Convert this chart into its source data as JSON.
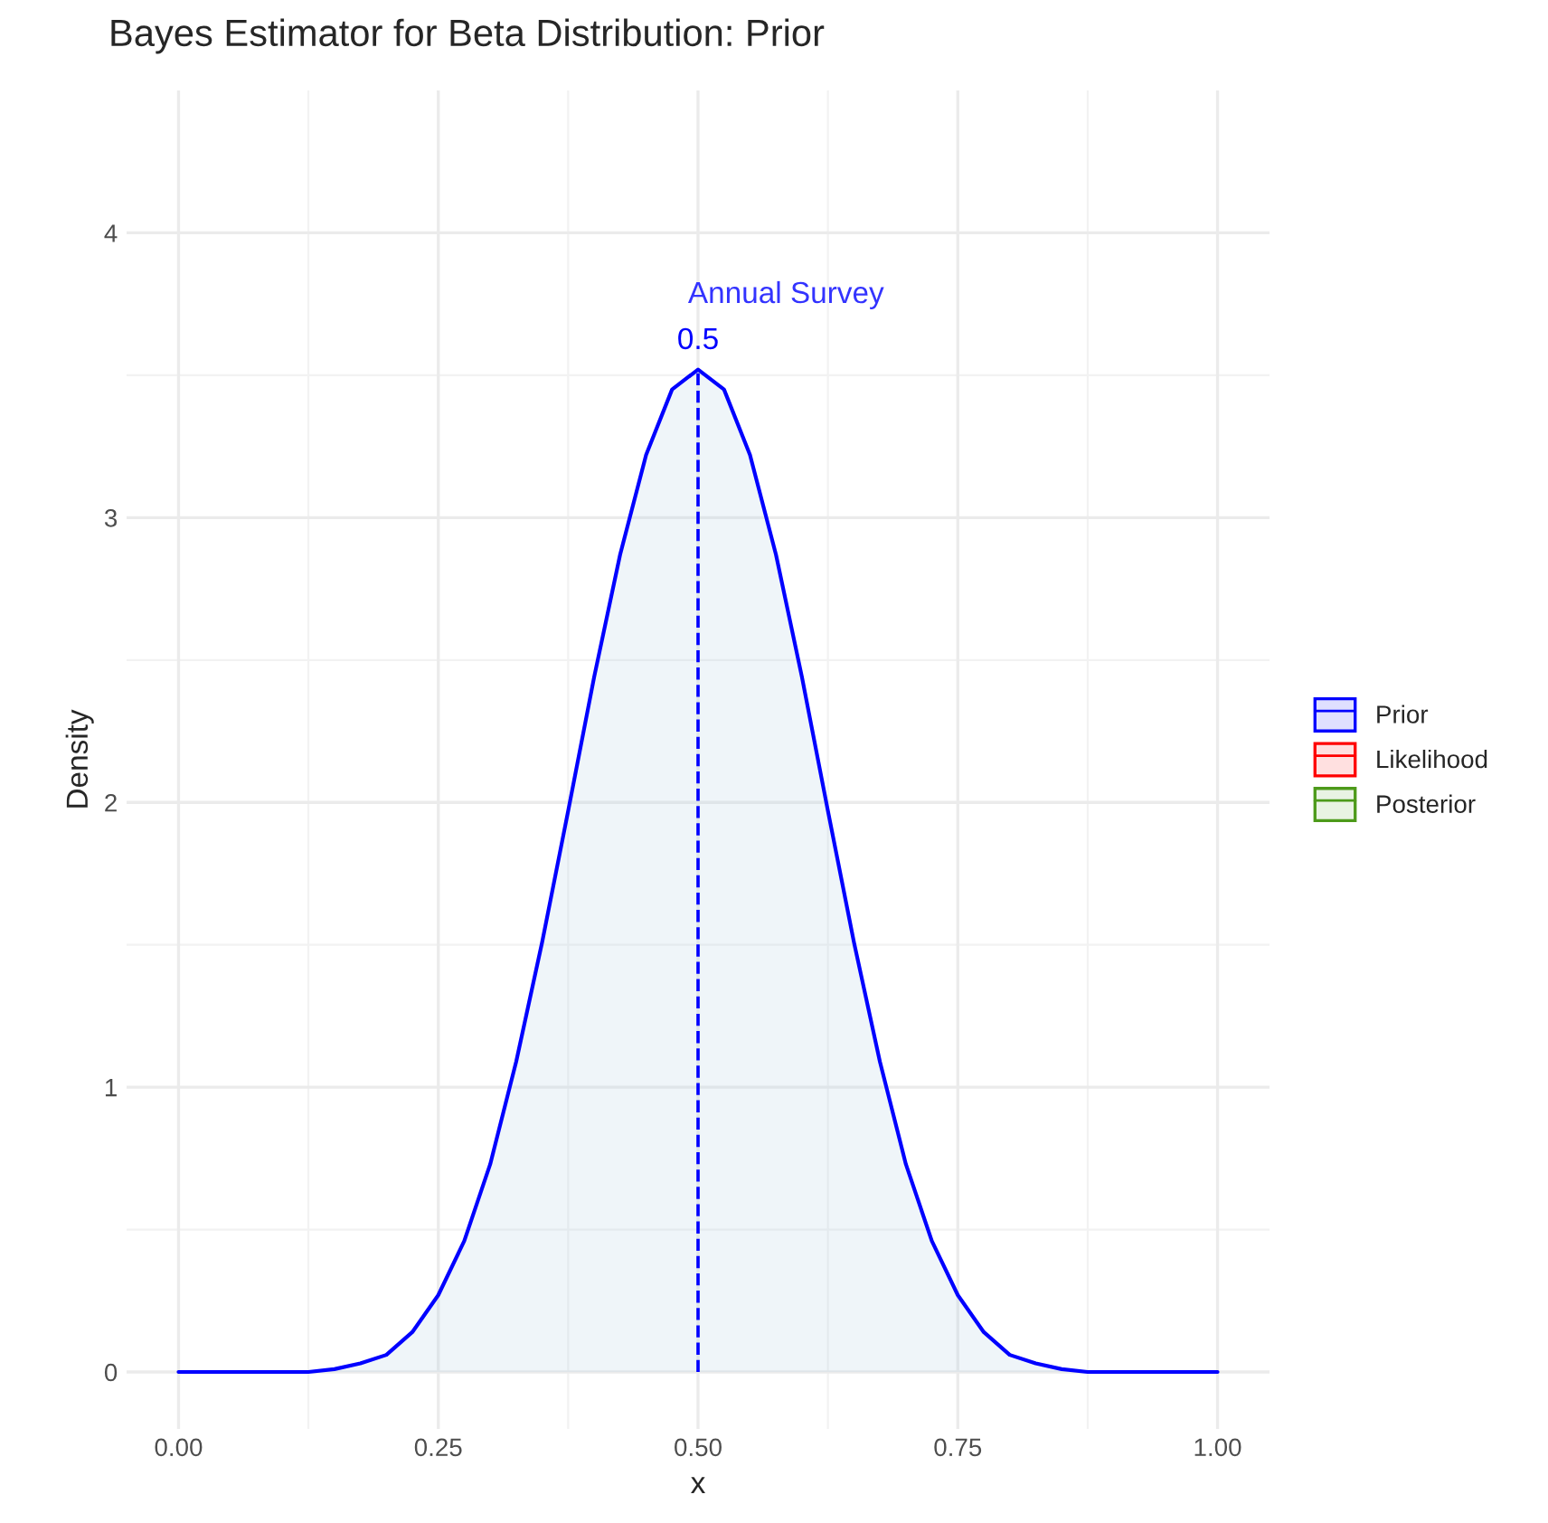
{
  "chart_data": {
    "type": "area",
    "title": "Bayes Estimator for Beta Distribution: Prior",
    "xlabel": "x",
    "ylabel": "Density",
    "x": [
      0,
      0.025,
      0.05,
      0.075,
      0.1,
      0.125,
      0.15,
      0.175,
      0.2,
      0.225,
      0.25,
      0.275,
      0.3,
      0.325,
      0.35,
      0.375,
      0.4,
      0.425,
      0.45,
      0.475,
      0.5,
      0.525,
      0.55,
      0.575,
      0.6,
      0.625,
      0.65,
      0.675,
      0.7,
      0.725,
      0.75,
      0.775,
      0.8,
      0.825,
      0.85,
      0.875,
      0.9,
      0.925,
      0.95,
      0.975,
      1
    ],
    "series": [
      {
        "name": "Prior",
        "color": "#0000ff",
        "values": [
          0,
          0,
          0,
          0,
          0.0,
          0.0,
          0.01,
          0.03,
          0.06,
          0.14,
          0.27,
          0.46,
          0.73,
          1.09,
          1.51,
          1.97,
          2.44,
          2.87,
          3.22,
          3.45,
          3.52,
          3.45,
          3.22,
          2.87,
          2.44,
          1.97,
          1.51,
          1.09,
          0.73,
          0.46,
          0.27,
          0.14,
          0.06,
          0.03,
          0.01,
          0.0,
          0.0,
          0,
          0,
          0,
          0
        ]
      },
      {
        "name": "Likelihood",
        "color": "#ff0000",
        "values": [
          null,
          null,
          null,
          null,
          null,
          null,
          null,
          null,
          null,
          null,
          null,
          null,
          null,
          null,
          null,
          null,
          null,
          null,
          null,
          null,
          null,
          null,
          null,
          null,
          null,
          null,
          null,
          null,
          null,
          null,
          null,
          null,
          null,
          null,
          null,
          null,
          null,
          null,
          null,
          null,
          null
        ]
      },
      {
        "name": "Posterior",
        "color": "#4d9a1a",
        "values": [
          null,
          null,
          null,
          null,
          null,
          null,
          null,
          null,
          null,
          null,
          null,
          null,
          null,
          null,
          null,
          null,
          null,
          null,
          null,
          null,
          null,
          null,
          null,
          null,
          null,
          null,
          null,
          null,
          null,
          null,
          null,
          null,
          null,
          null,
          null,
          null,
          null,
          null,
          null,
          null,
          null
        ]
      }
    ],
    "xlim": [
      -0.05,
      1.05
    ],
    "ylim": [
      -0.2,
      4.5
    ],
    "xticks": [
      {
        "value": 0,
        "label": "0.00"
      },
      {
        "value": 0.25,
        "label": "0.25"
      },
      {
        "value": 0.5,
        "label": "0.50"
      },
      {
        "value": 0.75,
        "label": "0.75"
      },
      {
        "value": 1,
        "label": "1.00"
      }
    ],
    "yticks": [
      0,
      1,
      2,
      3,
      4
    ],
    "ref_lines": [
      {
        "axis": "x",
        "value": 0.5,
        "label": "0.5",
        "color": "#0000ff",
        "line_style": "dashed"
      }
    ],
    "annotations": [
      "Annual Survey"
    ],
    "grid": true,
    "legend": "right"
  }
}
